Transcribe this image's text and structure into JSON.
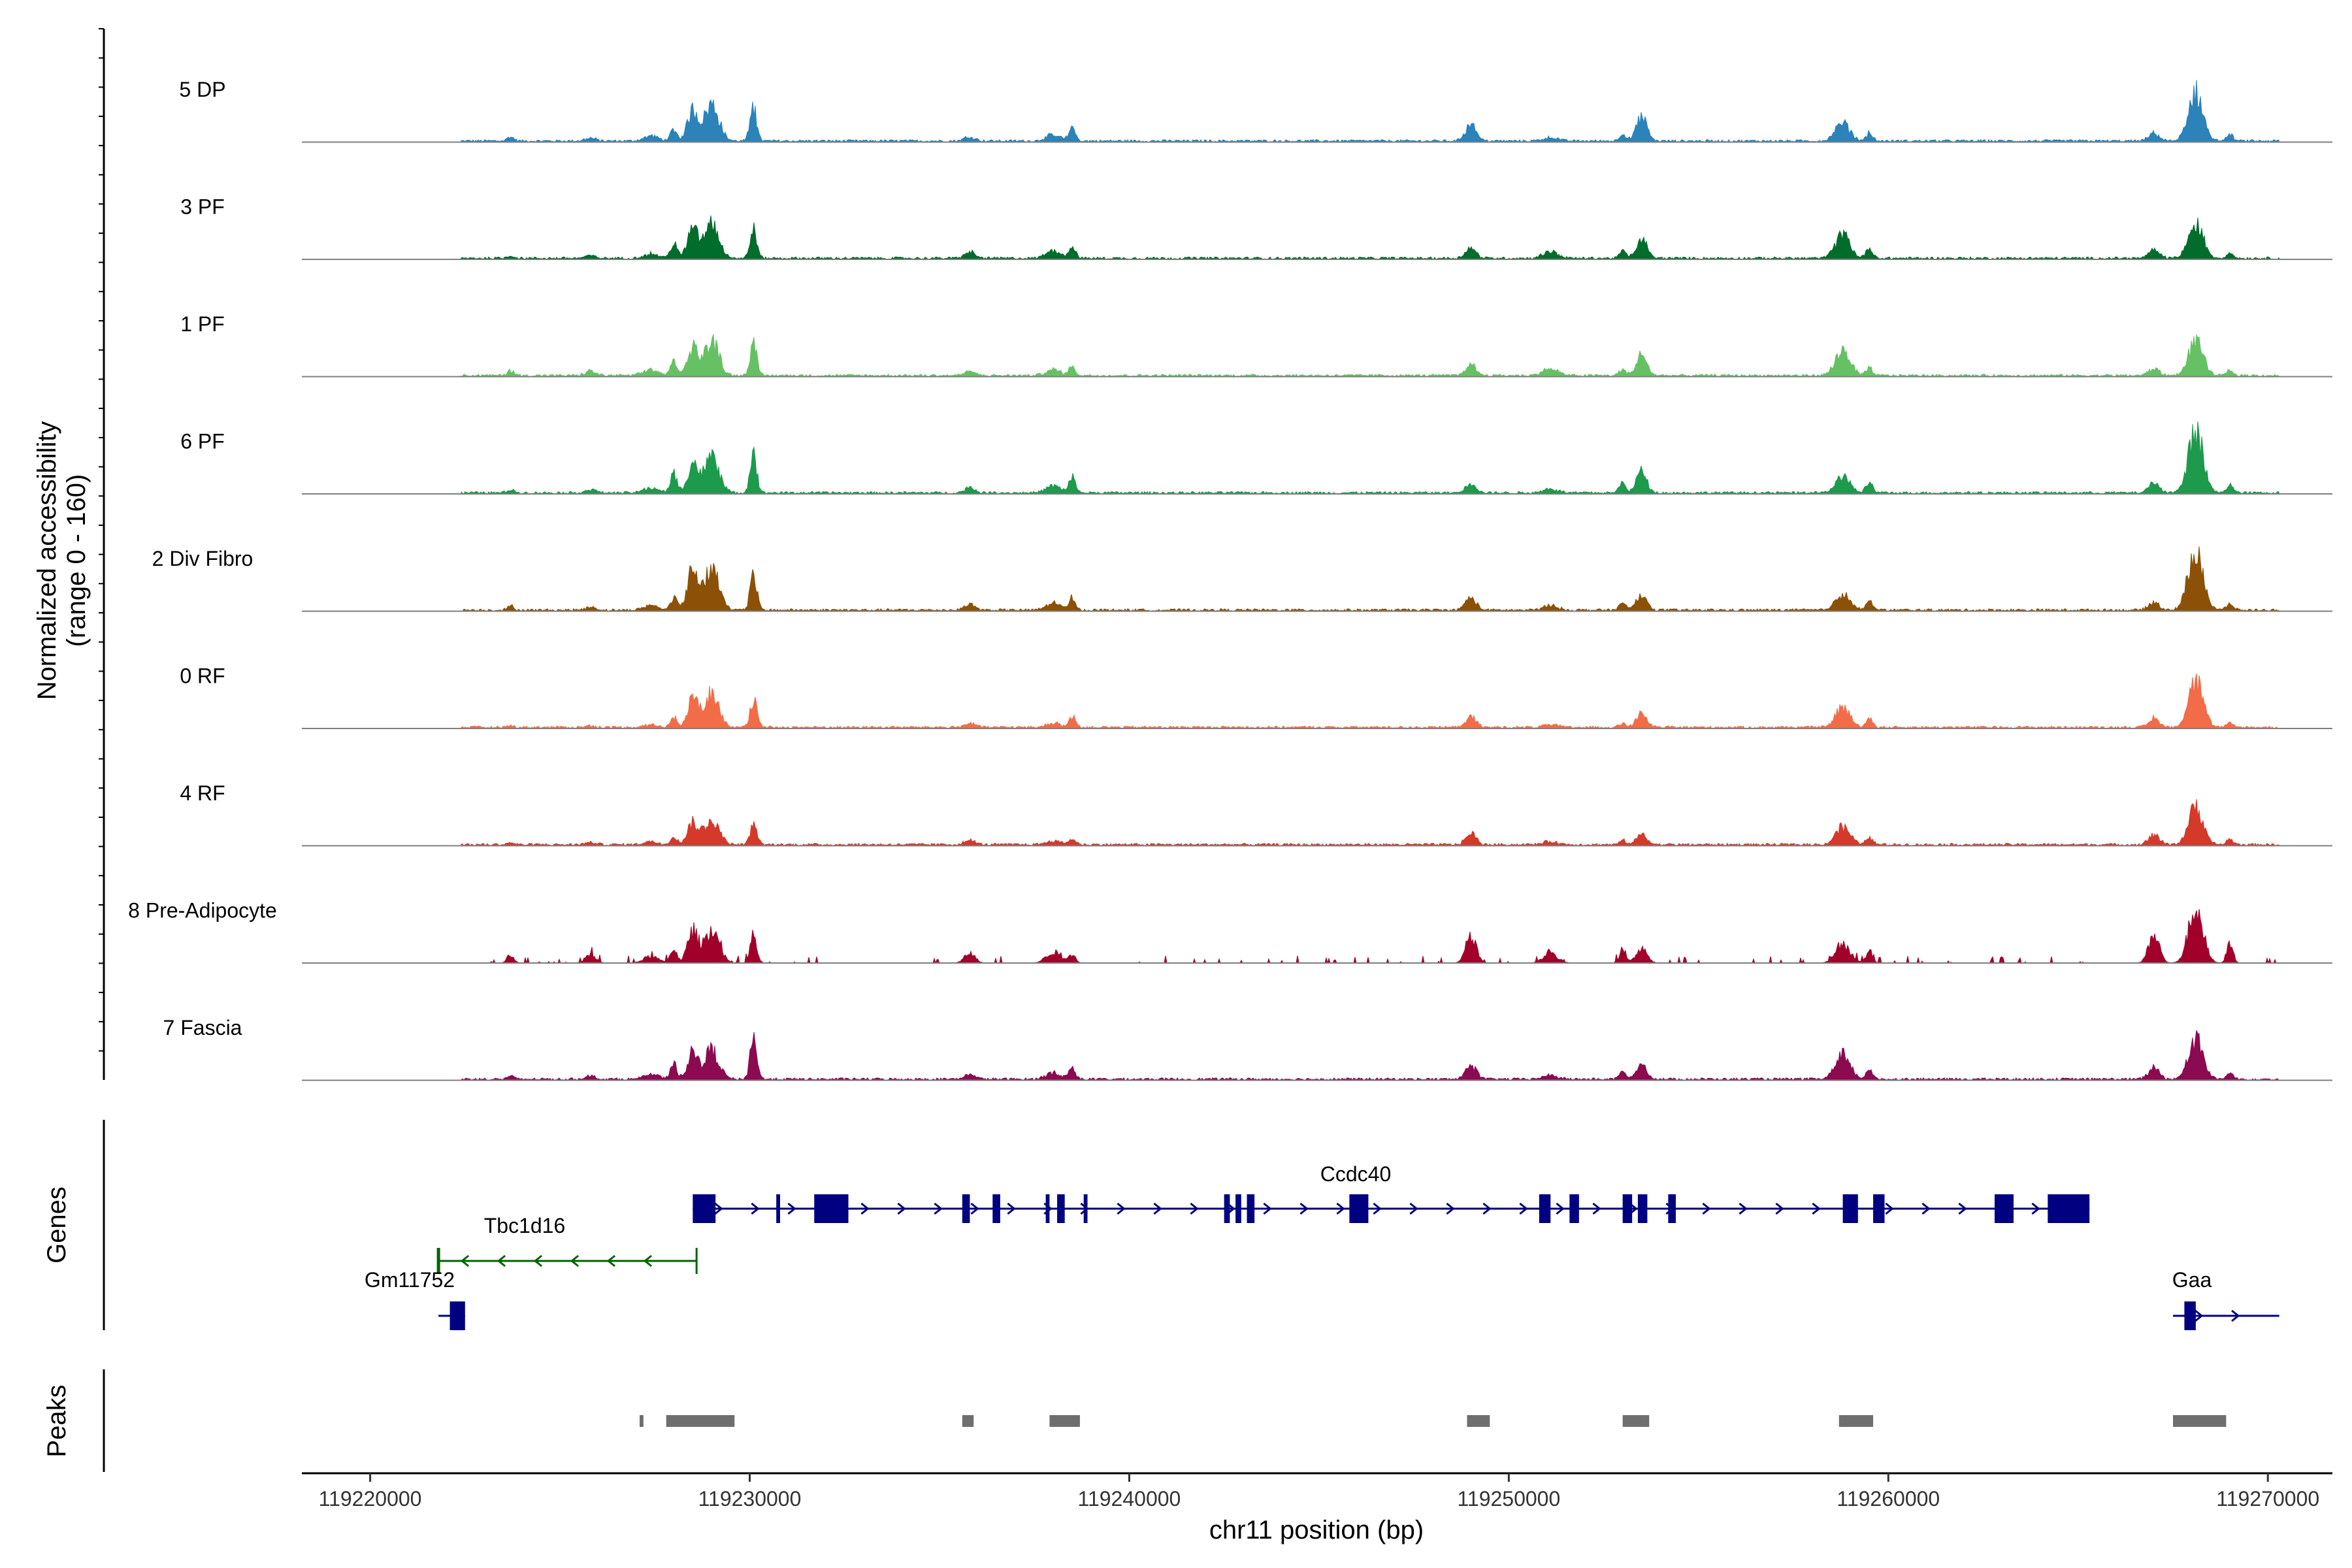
{
  "chart_data": {
    "type": "area",
    "ylabel_line1": "Normalized accessibility",
    "ylabel_line2": "(range 0 - 160)",
    "ylim": [
      0,
      160
    ],
    "xlabel": "chr11 position (bp)",
    "xlim": [
      119218200,
      119271700
    ],
    "x_ticks": [
      119220000,
      119230000,
      119240000,
      119250000,
      119260000,
      119270000
    ],
    "x_tick_labels": [
      "119220000",
      "119230000",
      "119240000",
      "119250000",
      "119260000",
      "119270000"
    ],
    "signal_range": [
      119222400,
      119270300
    ],
    "peak_positions": [
      119223700,
      119225800,
      119227400,
      119228000,
      119228500,
      119229000,
      119230100,
      119235800,
      119238000,
      119238500,
      119249000,
      119251100,
      119253000,
      119253500,
      119258800,
      119259500,
      119267000,
      119268100,
      119269000
    ],
    "series": [
      {
        "name": "5 DP",
        "color": "#2b83ba",
        "peak_heights": [
          8,
          6,
          10,
          22,
          62,
          75,
          70,
          9,
          12,
          25,
          36,
          7,
          14,
          48,
          35,
          16,
          15,
          98,
          12
        ]
      },
      {
        "name": "3 PF",
        "color": "#006d2c",
        "peak_heights": [
          5,
          5,
          9,
          32,
          58,
          70,
          60,
          12,
          16,
          22,
          20,
          14,
          14,
          40,
          48,
          20,
          18,
          70,
          10
        ]
      },
      {
        "name": "1 PF",
        "color": "#66c164",
        "peak_heights": [
          10,
          9,
          12,
          28,
          58,
          68,
          62,
          9,
          12,
          18,
          22,
          15,
          12,
          42,
          52,
          15,
          14,
          68,
          10
        ]
      },
      {
        "name": "6 PF",
        "color": "#1d9a4c",
        "peak_heights": [
          7,
          7,
          10,
          38,
          60,
          72,
          78,
          10,
          14,
          30,
          18,
          8,
          20,
          42,
          32,
          22,
          20,
          125,
          16
        ]
      },
      {
        "name": "2 Div Fibro",
        "color": "#8c5107",
        "peak_heights": [
          8,
          6,
          9,
          28,
          82,
          88,
          72,
          12,
          14,
          24,
          26,
          9,
          16,
          32,
          34,
          18,
          16,
          128,
          14
        ]
      },
      {
        "name": "0 RF",
        "color": "#f26c47",
        "peak_heights": [
          3,
          3,
          5,
          18,
          58,
          70,
          56,
          9,
          8,
          22,
          20,
          5,
          8,
          28,
          40,
          20,
          18,
          92,
          8
        ]
      },
      {
        "name": "4 RF",
        "color": "#d4392a",
        "peak_heights": [
          4,
          4,
          6,
          18,
          44,
          52,
          44,
          9,
          8,
          12,
          22,
          6,
          8,
          20,
          36,
          16,
          20,
          76,
          10
        ]
      },
      {
        "name": "8 Pre-Adipocyte",
        "color": "#a1002a",
        "peak_heights": [
          18,
          16,
          14,
          30,
          62,
          70,
          55,
          20,
          22,
          18,
          58,
          18,
          28,
          32,
          40,
          24,
          60,
          110,
          38
        ]
      },
      {
        "name": "7 Fascia",
        "color": "#8b0a50",
        "peak_heights": [
          6,
          6,
          10,
          30,
          52,
          58,
          82,
          10,
          14,
          22,
          30,
          8,
          14,
          30,
          52,
          18,
          24,
          82,
          12
        ]
      }
    ],
    "genes": [
      {
        "name": "Ccdc40",
        "strand": "+",
        "start": 119228500,
        "end": 119265300,
        "color": "#000080",
        "exons": [
          [
            119228500,
            119229100
          ],
          [
            119230700,
            119230800
          ],
          [
            119231700,
            119232600
          ],
          [
            119235600,
            119235800
          ],
          [
            119236400,
            119236600
          ],
          [
            119237800,
            119237900
          ],
          [
            119238100,
            119238300
          ],
          [
            119238800,
            119238900
          ],
          [
            119242500,
            119242650
          ],
          [
            119242800,
            119242950
          ],
          [
            119243100,
            119243300
          ],
          [
            119245800,
            119246300
          ],
          [
            119250800,
            119251100
          ],
          [
            119251600,
            119251850
          ],
          [
            119253000,
            119253250
          ],
          [
            119253400,
            119253650
          ],
          [
            119254200,
            119254400
          ],
          [
            119258800,
            119259200
          ],
          [
            119259600,
            119259900
          ],
          [
            119262800,
            119263300
          ],
          [
            119264200,
            119265300
          ]
        ]
      },
      {
        "name": "Tbc1d16",
        "strand": "-",
        "start": 119221800,
        "end": 119228600,
        "color": "#006400",
        "exons": []
      },
      {
        "name": "Gm11752",
        "strand": "+",
        "start": 119221800,
        "end": 119222500,
        "color": "#000080",
        "exons": [
          [
            119222100,
            119222500
          ]
        ]
      },
      {
        "name": "Gaa",
        "strand": "+",
        "start": 119267500,
        "end": 119270300,
        "color": "#000080",
        "exons": [
          [
            119267800,
            119268100
          ]
        ]
      }
    ],
    "peaks": [
      [
        119227100,
        119227200
      ],
      [
        119227800,
        119229600
      ],
      [
        119235600,
        119235900
      ],
      [
        119237900,
        119238700
      ],
      [
        119248900,
        119249500
      ],
      [
        119253000,
        119253700
      ],
      [
        119258700,
        119259600
      ],
      [
        119267500,
        119268900
      ]
    ],
    "gene_track_label": "Genes",
    "peak_track_label": "Peaks"
  }
}
